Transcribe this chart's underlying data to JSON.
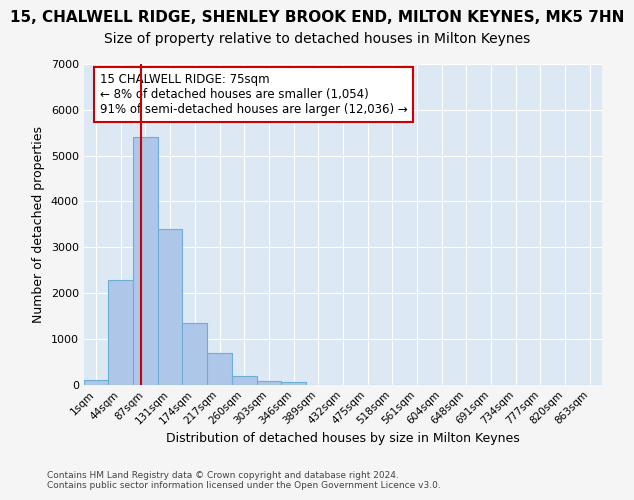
{
  "title_line1": "15, CHALWELL RIDGE, SHENLEY BROOK END, MILTON KEYNES, MK5 7HN",
  "title_line2": "Size of property relative to detached houses in Milton Keynes",
  "xlabel": "Distribution of detached houses by size in Milton Keynes",
  "ylabel": "Number of detached properties",
  "footnote": "Contains HM Land Registry data © Crown copyright and database right 2024.\nContains public sector information licensed under the Open Government Licence v3.0.",
  "bin_labels": [
    "1sqm",
    "44sqm",
    "87sqm",
    "131sqm",
    "174sqm",
    "217sqm",
    "260sqm",
    "303sqm",
    "346sqm",
    "389sqm",
    "432sqm",
    "475sqm",
    "518sqm",
    "561sqm",
    "604sqm",
    "648sqm",
    "691sqm",
    "734sqm",
    "777sqm",
    "820sqm",
    "863sqm"
  ],
  "bar_values": [
    100,
    2280,
    5400,
    3400,
    1350,
    700,
    200,
    90,
    65,
    0,
    0,
    0,
    0,
    0,
    0,
    0,
    0,
    0,
    0,
    0,
    0
  ],
  "bar_color": "#aec6e8",
  "bar_edge_color": "#6baed6",
  "ylim": [
    0,
    7000
  ],
  "yticks": [
    0,
    1000,
    2000,
    3000,
    4000,
    5000,
    6000,
    7000
  ],
  "property_line_x": 1.8,
  "property_line_color": "#cc0000",
  "annotation_text": "15 CHALWELL RIDGE: 75sqm\n← 8% of detached houses are smaller (1,054)\n91% of semi-detached houses are larger (12,036) →",
  "annotation_box_color": "#ffffff",
  "annotation_box_edge_color": "#cc0000",
  "plot_bg_color": "#dce9f5",
  "fig_bg_color": "#f5f5f5",
  "grid_color": "#ffffff",
  "title1_fontsize": 11,
  "title2_fontsize": 10,
  "xlabel_fontsize": 9,
  "ylabel_fontsize": 9,
  "annotation_fontsize": 8.5,
  "tick_fontsize": 7.5
}
